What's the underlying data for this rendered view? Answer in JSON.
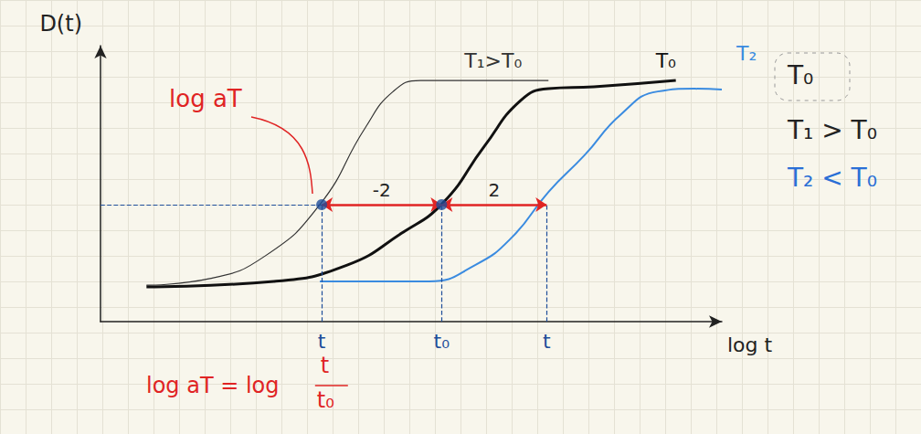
{
  "chart_data": {
    "type": "line",
    "x_label": "log t",
    "y_label": "D(t)",
    "xlim": [
      0,
      100
    ],
    "ylim": [
      0,
      100
    ],
    "xticks": [
      {
        "value": 35.6,
        "label": "t"
      },
      {
        "value": 54.9,
        "label": "t₀"
      },
      {
        "value": 71.8,
        "label": "t"
      }
    ],
    "tick_labels": "x",
    "grid": false,
    "series": [
      {
        "name": "T₁>T₀",
        "color": "#333333",
        "x": [
          7.4,
          17.6,
          26.5,
          35.3,
          42.6,
          47.1,
          51.5,
          72.1
        ],
        "values": [
          13.2,
          15.6,
          23.8,
          42.4,
          70.2,
          83.4,
          87.4,
          87.4
        ]
      },
      {
        "name": "T₀",
        "color": "#111111",
        "x": [
          7.4,
          27.9,
          39.7,
          48.5,
          55.1,
          61.8,
          67.6,
          72.1,
          79.4,
          92.6
        ],
        "values": [
          12.6,
          14.6,
          20.5,
          32.1,
          43.0,
          63.6,
          80.1,
          84.4,
          85.1,
          87.4
        ]
      },
      {
        "name": "T₂",
        "color": "#3a8be0",
        "x": [
          35.3,
          52.9,
          60.3,
          66.2,
          72.1,
          77.9,
          83.8,
          89.7,
          95.6,
          100
        ],
        "values": [
          14.6,
          14.6,
          20.5,
          30.5,
          47.0,
          60.3,
          75.2,
          83.4,
          84.4,
          84.1
        ]
      }
    ],
    "points": {
      "color": "#1f4e9a",
      "x": [
        35.6,
        54.9
      ],
      "y": [
        42.4,
        42.4
      ]
    },
    "shift": {
      "y": 42.4,
      "color": "#e02424",
      "label": "log aT",
      "arrows": [
        {
          "from": 54.9,
          "to": 35.6,
          "label": "-2"
        },
        {
          "from": 54.9,
          "to": 71.8,
          "label": "2"
        }
      ]
    },
    "formula": {
      "text": "log aT = log",
      "numerator": "t",
      "denominator": "t₀",
      "color": "#e02424"
    },
    "annotations": [
      {
        "text": "T₀",
        "color": "#222222"
      },
      {
        "text": "T₁ > T₀",
        "color": "#222222"
      },
      {
        "text": "T₂ < T₀",
        "color": "#2a6fd6"
      }
    ]
  }
}
